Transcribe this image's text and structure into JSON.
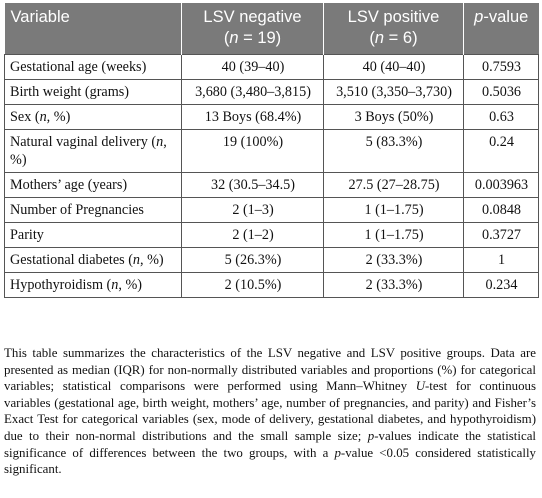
{
  "table": {
    "headers": {
      "variable": "Variable",
      "neg_title": "LSV negative",
      "neg_n_prefix": "(",
      "neg_n": "n",
      "neg_n_suffix": " = 19)",
      "pos_title": "LSV positive",
      "pos_n_prefix": "(",
      "pos_n": "n",
      "pos_n_suffix": " = 6)",
      "pval_p": "p",
      "pval_rest": "-value"
    },
    "rows": [
      {
        "v1": "Gestational age (weeks)",
        "neg": "40 (39–40)",
        "pos": "40 (40–40)",
        "p": "0.7593"
      },
      {
        "v1": "Birth weight (grams)",
        "neg": "3,680 (3,480–3,815)",
        "pos": "3,510 (3,350–3,730)",
        "p": "0.5036"
      },
      {
        "v1": "Sex (",
        "v_it": "n",
        "v2": ", %)",
        "neg": "13 Boys (68.4%)",
        "pos": "3 Boys (50%)",
        "p": "0.63"
      },
      {
        "v1": "Natural vaginal delivery (",
        "v_it": "n",
        "v2": ", %)",
        "neg": "19 (100%)",
        "pos": "5 (83.3%)",
        "p": "0.24"
      },
      {
        "v1": "Mothers’ age (years)",
        "neg": "32 (30.5–34.5)",
        "pos": "27.5 (27–28.75)",
        "p": "0.003963"
      },
      {
        "v1": "Number of Pregnancies",
        "neg": "2 (1–3)",
        "pos": "1 (1–1.75)",
        "p": "0.0848"
      },
      {
        "v1": "Parity",
        "neg": "2 (1–2)",
        "pos": "1 (1–1.75)",
        "p": "0.3727"
      },
      {
        "v1": "Gestational diabetes (",
        "v_it": "n",
        "v2": ", %)",
        "neg": "5 (26.3%)",
        "pos": "2 (33.3%)",
        "p": "1"
      },
      {
        "v1": "Hypothyroidism (",
        "v_it": "n",
        "v2": ", %)",
        "neg": "2 (10.5%)",
        "pos": "2 (33.3%)",
        "p": "0.234"
      }
    ]
  },
  "caption": {
    "s1": "This table summarizes the characteristics of the LSV negative and LSV positive groups. Data are presented as median (IQR) for non-normally distributed variables and proportions (%) for categorical variables; statistical comparisons were performed using Mann–Whitney ",
    "u": "U",
    "s2": "-test for continuous variables (gestational age, birth weight, mothers’ age, number of pregnancies, and parity) and Fisher’s Exact Test for categorical variables (sex, mode of delivery, gestational diabetes, and hypothyroidism) due to their non-normal distributions and the small sample size; ",
    "p1": "p",
    "s3": "-values indicate the statistical significance of differences between the two groups, with a ",
    "p2": "p",
    "s4": "-value <0.05 considered statistically significant."
  }
}
